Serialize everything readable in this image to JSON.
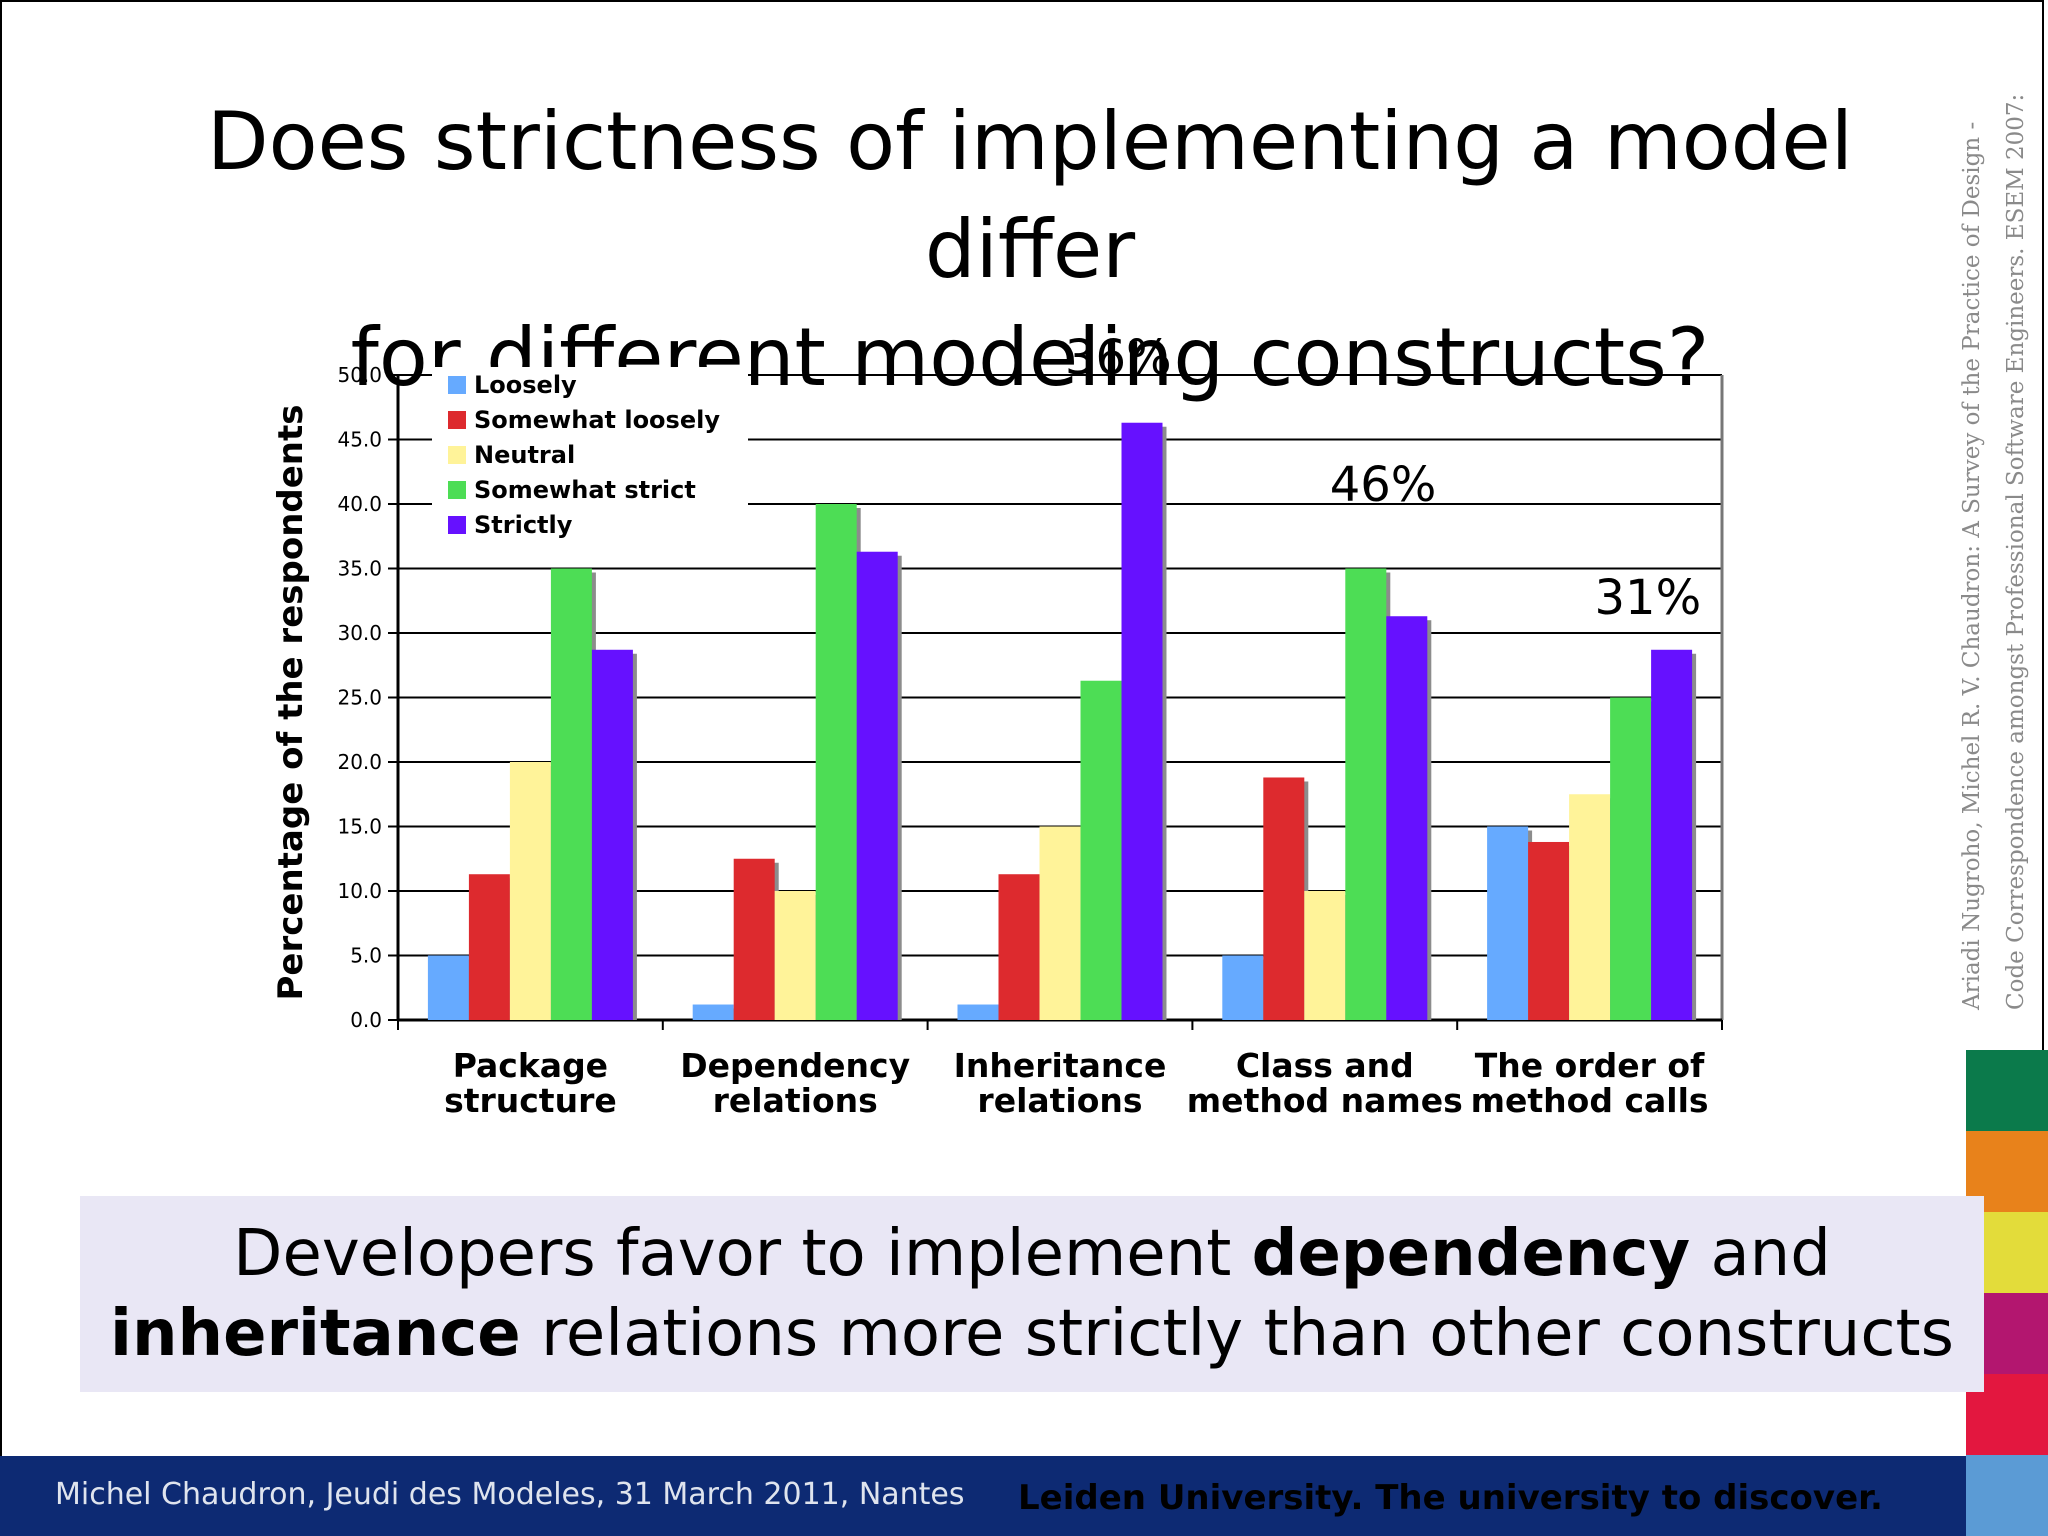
{
  "slide": {
    "title_lines": [
      "Does strictness of implementing a model differ",
      "for different modeling constructs?"
    ],
    "citation_lines": [
      "Ariadi Nugroho, Michel R. V. Chaudron: A Survey of the Practice of Design -",
      "Code Correspondence amongst Professional Software Engineers. ESEM 2007:"
    ],
    "conclusion": {
      "line1_a": "Developers favor to implement ",
      "line1_b": "dependency",
      "line1_c": " and",
      "line2_a": "inheritance",
      "line2_b": " relations more strictly than other constructs"
    },
    "footer_left": "Michel Chaudron, Jeudi des Modeles, 31 March 2011, Nantes",
    "footer_right": "Leiden University. The university to discover.",
    "strip_colors": [
      "#0b7a4b",
      "#e8821b",
      "#e3dc3a",
      "#b3166f",
      "#e3173f",
      "#5b9bd5"
    ]
  },
  "chart_data": {
    "type": "bar",
    "categories": [
      [
        "Package",
        "structure"
      ],
      [
        "Dependency",
        "relations"
      ],
      [
        "Inheritance",
        "relations"
      ],
      [
        "Class and",
        "method names"
      ],
      [
        "The order of",
        "method calls"
      ]
    ],
    "series": [
      {
        "name": "Loosely",
        "color": "#66aaff",
        "values": [
          5.0,
          1.2,
          1.2,
          5.0,
          15.0
        ]
      },
      {
        "name": "Somewhat loosely",
        "color": "#dd2a2e",
        "values": [
          11.3,
          12.5,
          11.3,
          18.8,
          13.8
        ]
      },
      {
        "name": "Neutral",
        "color": "#fff399",
        "values": [
          20.0,
          10.0,
          15.0,
          10.0,
          17.5
        ]
      },
      {
        "name": "Somewhat strict",
        "color": "#4ddd55",
        "values": [
          35.0,
          40.0,
          26.3,
          35.0,
          25.0
        ]
      },
      {
        "name": "Strictly",
        "color": "#6611ff",
        "values": [
          28.7,
          36.3,
          46.3,
          31.3,
          28.7
        ]
      }
    ],
    "ylabel": "Percentage of the respondents",
    "ylim": [
      0,
      50
    ],
    "yticks": [
      "0.0",
      "5.0",
      "10.0",
      "15.0",
      "20.0",
      "25.0",
      "30.0",
      "35.0",
      "40.0",
      "45.0",
      "50.0"
    ],
    "grid": true,
    "legend": "top-left",
    "annotations": [
      {
        "text": "36%",
        "category": 2
      },
      {
        "text": "46%",
        "category": 3
      },
      {
        "text": "31%",
        "category": 4
      }
    ]
  }
}
